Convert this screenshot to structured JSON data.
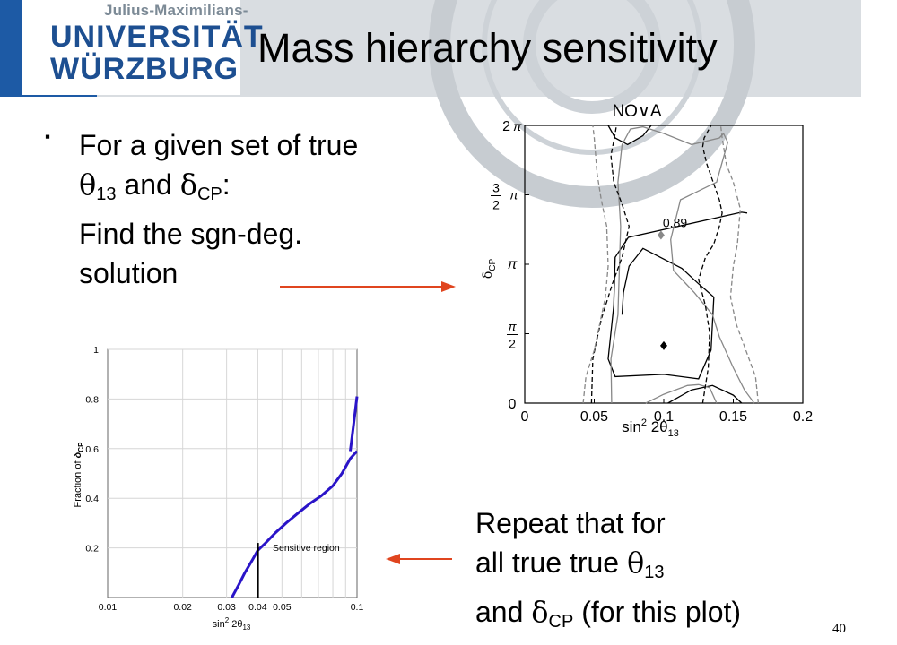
{
  "header": {
    "logo_small": "Julius-Maximilians-",
    "logo_line1": "UNIVERSITÄT",
    "logo_line2": "WÜRZBURG"
  },
  "title": "Mass hierarchy sensitivity",
  "bullet": {
    "marker": "▪",
    "line1": "For a given set of true",
    "theta": "θ",
    "theta_sub": "13",
    "and": " and ",
    "delta": "δ",
    "delta_sub": "CP",
    "colon": ":",
    "line3": "Find the sgn-deg.",
    "line4": "solution"
  },
  "repeat": {
    "line1": "Repeat that for",
    "line2_pre": "all true true ",
    "theta": "θ",
    "theta_sub": "13",
    "line3_pre": "and ",
    "delta": "δ",
    "delta_sub": "CP",
    "line3_post": " (for this plot)"
  },
  "page_number": "40",
  "colors": {
    "arrow": "#e0451f",
    "logo_blue": "#1d4f91",
    "curve": "#2a14c8"
  },
  "chart_data": [
    {
      "type": "contour",
      "title": "NO∨A",
      "xlabel": "sin",
      "xlabel_sup": "2",
      "xlabel_rest": " 2θ",
      "xlabel_sub": "13",
      "ylabel": "δ",
      "ylabel_sub": "CP",
      "xlim": [
        0,
        0.2
      ],
      "ylim": [
        0,
        6.2832
      ],
      "x_ticks": [
        {
          "v": 0,
          "label": "0"
        },
        {
          "v": 0.05,
          "label": "0.05"
        },
        {
          "v": 0.1,
          "label": "0.1"
        },
        {
          "v": 0.15,
          "label": "0.15"
        },
        {
          "v": 0.2,
          "label": "0.2"
        }
      ],
      "y_ticks": [
        {
          "v": 0,
          "top": "0",
          "bottom": ""
        },
        {
          "v": 1.5708,
          "top": "π",
          "bottom": "2"
        },
        {
          "v": 3.1416,
          "top": "π",
          "bottom": ""
        },
        {
          "v": 4.7124,
          "top": "3",
          "bottom": "2"
        },
        {
          "v": 6.2832,
          "top": "2",
          "bottom": "π"
        }
      ],
      "points": [
        {
          "name": "true",
          "x": 0.1,
          "y": 1.3,
          "color": "#000000",
          "label": ""
        },
        {
          "name": "sgn-deg",
          "x": 0.098,
          "y": 3.8,
          "color": "#888888",
          "label": "0.89"
        }
      ],
      "contours": [
        {
          "style": "solid",
          "color": "#000000",
          "pts": [
            [
              0.16,
              4.3
            ],
            [
              0.156,
              4.32
            ],
            [
              0.0745,
              3.75
            ],
            [
              0.065,
              3.3
            ],
            [
              0.064,
              2.2
            ],
            [
              0.06,
              1.0
            ],
            [
              0.065,
              0.6
            ],
            [
              0.1,
              0.65
            ],
            [
              0.125,
              0.55
            ],
            [
              0.134,
              1.2
            ],
            [
              0.136,
              2.4
            ],
            [
              0.125,
              2.7
            ],
            [
              0.113,
              3.05
            ],
            [
              0.085,
              3.5
            ],
            [
              0.075,
              3.1
            ],
            [
              0.071,
              2.5
            ],
            [
              0.07,
              2.0
            ]
          ]
        },
        {
          "style": "solid",
          "color": "#000000",
          "pts": [
            [
              0.06,
              6.2832
            ],
            [
              0.065,
              6.0
            ],
            [
              0.074,
              5.85
            ],
            [
              0.085,
              6.05
            ],
            [
              0.091,
              6.2832
            ]
          ]
        },
        {
          "style": "solid",
          "color": "#000000",
          "pts": [
            [
              0.103,
              0
            ],
            [
              0.12,
              0.3
            ],
            [
              0.135,
              0.4
            ],
            [
              0.15,
              0.18
            ],
            [
              0.156,
              0
            ]
          ]
        },
        {
          "style": "solid",
          "color": "#888888",
          "pts": [
            [
              0.0625,
              0
            ],
            [
              0.062,
              1.0
            ],
            [
              0.067,
              2.0
            ],
            [
              0.068,
              3.0
            ],
            [
              0.069,
              4.0
            ],
            [
              0.067,
              5.0
            ],
            [
              0.07,
              5.85
            ],
            [
              0.076,
              6.2
            ],
            [
              0.085,
              6.25
            ],
            [
              0.1,
              6.1
            ],
            [
              0.12,
              5.85
            ],
            [
              0.14,
              6.0
            ],
            [
              0.143,
              6.1
            ],
            [
              0.146,
              5.9
            ],
            [
              0.138,
              5.0
            ],
            [
              0.125,
              4.8
            ],
            [
              0.112,
              4.6
            ],
            [
              0.105,
              3.7
            ],
            [
              0.107,
              3.0
            ],
            [
              0.122,
              2.5
            ],
            [
              0.135,
              2.0
            ],
            [
              0.14,
              1.5
            ],
            [
              0.15,
              0.8
            ],
            [
              0.158,
              0.3
            ],
            [
              0.165,
              0
            ]
          ]
        },
        {
          "style": "solid",
          "color": "#888888",
          "pts": [
            [
              0.087,
              0
            ],
            [
              0.1,
              0.2
            ],
            [
              0.117,
              0.4
            ],
            [
              0.125,
              0.42
            ],
            [
              0.133,
              0.35
            ],
            [
              0.138,
              0
            ]
          ]
        },
        {
          "style": "dashed",
          "color": "#000000",
          "pts": [
            [
              0.048,
              0
            ],
            [
              0.049,
              1.0
            ],
            [
              0.055,
              1.9
            ],
            [
              0.063,
              2.7
            ],
            [
              0.07,
              3.3
            ],
            [
              0.075,
              4.0
            ],
            [
              0.07,
              4.5
            ],
            [
              0.064,
              5.0
            ],
            [
              0.062,
              5.6
            ],
            [
              0.065,
              6.1
            ],
            [
              0.066,
              6.2832
            ]
          ]
        },
        {
          "style": "dashed",
          "color": "#000000",
          "pts": [
            [
              0.128,
              0
            ],
            [
              0.132,
              0.8
            ],
            [
              0.133,
              1.6
            ],
            [
              0.13,
              2.2
            ],
            [
              0.125,
              2.8
            ],
            [
              0.13,
              3.3
            ],
            [
              0.136,
              3.6
            ],
            [
              0.14,
              4.0
            ],
            [
              0.142,
              4.3
            ],
            [
              0.14,
              4.6
            ],
            [
              0.131,
              5.4
            ],
            [
              0.128,
              5.8
            ],
            [
              0.129,
              6.0
            ],
            [
              0.134,
              6.2832
            ]
          ]
        },
        {
          "style": "dashed",
          "color": "#888888",
          "pts": [
            [
              0.042,
              0
            ],
            [
              0.044,
              0.6
            ],
            [
              0.05,
              1.2
            ],
            [
              0.054,
              1.8
            ],
            [
              0.058,
              2.4
            ],
            [
              0.06,
              3.1
            ],
            [
              0.059,
              4.0
            ],
            [
              0.055,
              4.6
            ],
            [
              0.052,
              5.2
            ],
            [
              0.05,
              6.0
            ],
            [
              0.049,
              6.2832
            ]
          ]
        },
        {
          "style": "dashed",
          "color": "#888888",
          "pts": [
            [
              0.168,
              0
            ],
            [
              0.166,
              0.6
            ],
            [
              0.159,
              1.2
            ],
            [
              0.152,
              1.8
            ],
            [
              0.148,
              2.4
            ],
            [
              0.15,
              3.1
            ],
            [
              0.153,
              3.6
            ],
            [
              0.155,
              4.4
            ],
            [
              0.15,
              5.0
            ],
            [
              0.145,
              5.4
            ],
            [
              0.142,
              6.0
            ],
            [
              0.141,
              6.2832
            ]
          ]
        }
      ]
    },
    {
      "type": "line",
      "xlabel": "sin",
      "xlabel_sup": "2",
      "xlabel_rest": " 2θ",
      "xlabel_sub": "13",
      "ylabel": "Fraction of ",
      "ylabel_delta": "δ",
      "ylabel_sub": "CP",
      "x_scale": "log",
      "xlim": [
        0.01,
        0.1
      ],
      "ylim": [
        0,
        1
      ],
      "x_ticks": [
        {
          "v": 0.01,
          "label": "0.01"
        },
        {
          "v": 0.02,
          "label": "0.02"
        },
        {
          "v": 0.03,
          "label": "0.03"
        },
        {
          "v": 0.04,
          "label": "0.04"
        },
        {
          "v": 0.05,
          "label": "0.05"
        },
        {
          "v": 0.1,
          "label": "0.1"
        }
      ],
      "y_ticks": [
        {
          "v": 0.2,
          "label": "0.2"
        },
        {
          "v": 0.4,
          "label": "0.4"
        },
        {
          "v": 0.6,
          "label": "0.6"
        },
        {
          "v": 0.8,
          "label": "0.8"
        },
        {
          "v": 1,
          "label": "1"
        }
      ],
      "series": [
        {
          "name": "",
          "color": "#2a14c8",
          "x": [
            0.0315,
            0.0335,
            0.0355,
            0.038,
            0.04,
            0.043,
            0.047,
            0.052,
            0.058,
            0.065,
            0.072,
            0.08,
            0.087,
            0.094,
            0.1
          ],
          "y": [
            0.0,
            0.05,
            0.1,
            0.15,
            0.19,
            0.22,
            0.26,
            0.3,
            0.34,
            0.38,
            0.41,
            0.45,
            0.5,
            0.56,
            0.59
          ]
        },
        {
          "name": "",
          "color": "#2a14c8",
          "x": [
            0.094,
            0.097,
            0.1
          ],
          "y": [
            0.59,
            0.7,
            0.81
          ]
        }
      ],
      "marker_line": {
        "x": 0.04,
        "y0": 0,
        "y1": 0.22
      },
      "annotation": "Sensitive region"
    }
  ]
}
